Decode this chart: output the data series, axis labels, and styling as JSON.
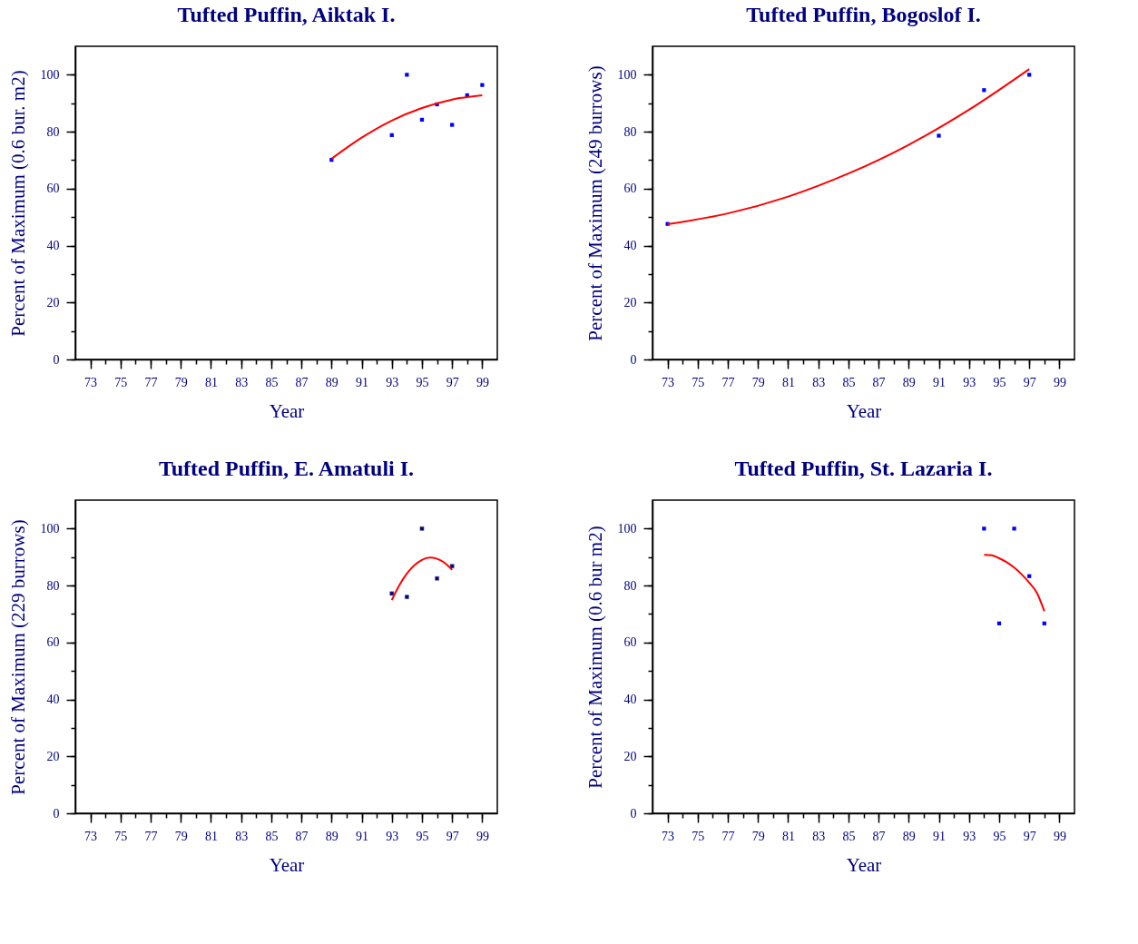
{
  "chart_data": [
    {
      "type": "scatter",
      "title": "Tufted Puffin, Aiktak I.",
      "xlabel": "Year",
      "ylabel": "Percent of Maximum (0.6 bur. m2)",
      "xlim": [
        72,
        100
      ],
      "ylim": [
        0,
        110
      ],
      "xticks": [
        73,
        {
          "value": 74,
          "label": null
        },
        75,
        {
          "value": 76,
          "label": null
        },
        77,
        {
          "value": 78,
          "label": null
        },
        79,
        {
          "value": 80,
          "label": null
        },
        81,
        {
          "value": 82,
          "label": null
        },
        83,
        {
          "value": 84,
          "label": null
        },
        85,
        {
          "value": 86,
          "label": null
        },
        87,
        {
          "value": 88,
          "label": null
        },
        89,
        {
          "value": 90,
          "label": null
        },
        91,
        {
          "value": 92,
          "label": null
        },
        93,
        {
          "value": 94,
          "label": null
        },
        95,
        {
          "value": 96,
          "label": null
        },
        97,
        {
          "value": 98,
          "label": null
        },
        99
      ],
      "yticks": [
        0,
        {
          "value": 10,
          "label": null
        },
        20,
        {
          "value": 30,
          "label": null
        },
        40,
        {
          "value": 50,
          "label": null
        },
        60,
        {
          "value": 70,
          "label": null
        },
        80,
        {
          "value": 90,
          "label": null
        },
        100
      ],
      "x": [
        89,
        93,
        94,
        95,
        96,
        97,
        98,
        99
      ],
      "series": [
        {
          "type": "scatter",
          "marker": "square",
          "color": "#0000ff",
          "values": [
            70.1,
            78.8,
            100,
            84.2,
            89.6,
            82.4,
            92.8,
            96.4
          ]
        },
        {
          "type": "line",
          "marker": "none",
          "color": "#ff0000",
          "x": [
            89,
            91,
            93,
            95,
            97,
            99
          ],
          "values": [
            70.5,
            77.9,
            83.9,
            88.3,
            91.3,
            92.8
          ]
        }
      ]
    },
    {
      "type": "scatter",
      "title": "Tufted Puffin, Bogoslof I.",
      "xlabel": "Year",
      "ylabel": "Percent of Maximum (249 burrows)",
      "xlim": [
        72,
        100
      ],
      "ylim": [
        0,
        110
      ],
      "xticks": [
        73,
        {
          "value": 74,
          "label": null
        },
        75,
        {
          "value": 76,
          "label": null
        },
        77,
        {
          "value": 78,
          "label": null
        },
        79,
        {
          "value": 80,
          "label": null
        },
        81,
        {
          "value": 82,
          "label": null
        },
        83,
        {
          "value": 84,
          "label": null
        },
        85,
        {
          "value": 86,
          "label": null
        },
        87,
        {
          "value": 88,
          "label": null
        },
        89,
        {
          "value": 90,
          "label": null
        },
        91,
        {
          "value": 92,
          "label": null
        },
        93,
        {
          "value": 94,
          "label": null
        },
        95,
        {
          "value": 96,
          "label": null
        },
        97,
        {
          "value": 98,
          "label": null
        },
        99
      ],
      "yticks": [
        0,
        {
          "value": 10,
          "label": null
        },
        20,
        {
          "value": 30,
          "label": null
        },
        40,
        {
          "value": 50,
          "label": null
        },
        60,
        {
          "value": 70,
          "label": null
        },
        80,
        {
          "value": 90,
          "label": null
        },
        100
      ],
      "x": [
        73,
        91,
        94,
        97
      ],
      "series": [
        {
          "type": "scatter",
          "marker": "square",
          "color": "#0000ff",
          "values": [
            47.6,
            78.6,
            94.6,
            100
          ]
        },
        {
          "type": "line",
          "marker": "none",
          "color": "#ff0000",
          "x": [
            73,
            77,
            81,
            85,
            89,
            93,
            97
          ],
          "values": [
            47.5,
            51.3,
            57.2,
            65.3,
            75.4,
            87.7,
            102
          ]
        }
      ]
    },
    {
      "type": "scatter",
      "title": "Tufted Puffin, E. Amatuli I.",
      "xlabel": "Year",
      "ylabel": "Percent of Maximum (229 burrows)",
      "xlim": [
        72,
        100
      ],
      "ylim": [
        0,
        110
      ],
      "xticks": [
        73,
        {
          "value": 74,
          "label": null
        },
        75,
        {
          "value": 76,
          "label": null
        },
        77,
        {
          "value": 78,
          "label": null
        },
        79,
        {
          "value": 80,
          "label": null
        },
        81,
        {
          "value": 82,
          "label": null
        },
        83,
        {
          "value": 84,
          "label": null
        },
        85,
        {
          "value": 86,
          "label": null
        },
        87,
        {
          "value": 88,
          "label": null
        },
        89,
        {
          "value": 90,
          "label": null
        },
        91,
        {
          "value": 92,
          "label": null
        },
        93,
        {
          "value": 94,
          "label": null
        },
        95,
        {
          "value": 96,
          "label": null
        },
        97,
        {
          "value": 98,
          "label": null
        },
        99
      ],
      "yticks": [
        0,
        {
          "value": 10,
          "label": null
        },
        20,
        {
          "value": 30,
          "label": null
        },
        40,
        {
          "value": 50,
          "label": null
        },
        60,
        {
          "value": 70,
          "label": null
        },
        80,
        {
          "value": 90,
          "label": null
        },
        100
      ],
      "x": [
        93,
        94,
        95,
        96,
        97
      ],
      "series": [
        {
          "type": "scatter",
          "marker": "square",
          "color": "#00008b",
          "values": [
            77.2,
            76.0,
            100,
            82.5,
            86.8
          ]
        },
        {
          "type": "line",
          "marker": "none",
          "color": "#ff0000",
          "x": [
            93,
            93.5,
            94,
            94.5,
            95,
            95.5,
            96,
            96.5,
            97
          ],
          "values": [
            74.9,
            80.1,
            84.2,
            87.1,
            89.0,
            89.8,
            89.4,
            88.0,
            85.5
          ]
        }
      ]
    },
    {
      "type": "scatter",
      "title": "Tufted Puffin, St. Lazaria I.",
      "xlabel": "Year",
      "ylabel": "Percent of Maximum (0.6 bur m2)",
      "xlim": [
        72,
        100
      ],
      "ylim": [
        0,
        110
      ],
      "xticks": [
        73,
        {
          "value": 74,
          "label": null
        },
        75,
        {
          "value": 76,
          "label": null
        },
        77,
        {
          "value": 78,
          "label": null
        },
        79,
        {
          "value": 80,
          "label": null
        },
        81,
        {
          "value": 82,
          "label": null
        },
        83,
        {
          "value": 84,
          "label": null
        },
        85,
        {
          "value": 86,
          "label": null
        },
        87,
        {
          "value": 88,
          "label": null
        },
        89,
        {
          "value": 90,
          "label": null
        },
        91,
        {
          "value": 92,
          "label": null
        },
        93,
        {
          "value": 94,
          "label": null
        },
        95,
        {
          "value": 96,
          "label": null
        },
        97,
        {
          "value": 98,
          "label": null
        },
        99
      ],
      "yticks": [
        0,
        {
          "value": 10,
          "label": null
        },
        20,
        {
          "value": 30,
          "label": null
        },
        40,
        {
          "value": 50,
          "label": null
        },
        60,
        {
          "value": 70,
          "label": null
        },
        80,
        {
          "value": 90,
          "label": null
        },
        100
      ],
      "x": [
        94,
        95,
        96,
        97,
        98
      ],
      "series": [
        {
          "type": "scatter",
          "marker": "square",
          "color": "#0000ff",
          "values": [
            100,
            66.7,
            100,
            83.3,
            66.7
          ]
        },
        {
          "type": "line",
          "marker": "none",
          "color": "#ff0000",
          "x": [
            94,
            94.5,
            95,
            95.5,
            96,
            96.5,
            97,
            97.5,
            98
          ],
          "values": [
            90.8,
            90.6,
            89.6,
            88.2,
            86.3,
            83.9,
            81,
            77.5,
            71
          ]
        }
      ]
    }
  ]
}
